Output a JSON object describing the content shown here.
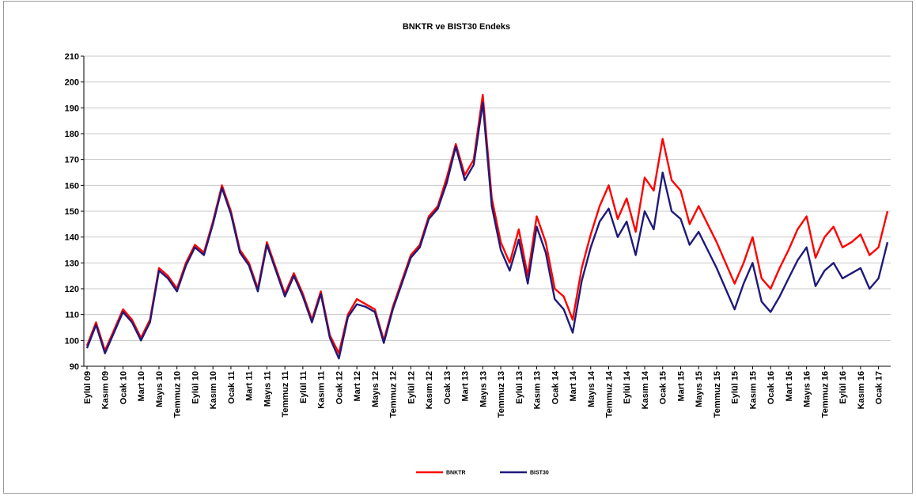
{
  "chart_data": {
    "type": "line",
    "title": "BNKTR  ve BIST30 Endeks",
    "xlabel": "",
    "ylabel": "",
    "ylim": [
      90,
      210
    ],
    "yticks": [
      90,
      100,
      110,
      120,
      130,
      140,
      150,
      160,
      170,
      180,
      190,
      200,
      210
    ],
    "grid": "horizontal",
    "legend_position": "bottom-center",
    "x_tick_labels": [
      "Eylül 09",
      "Kasım 09",
      "Ocak 10",
      "Mart 10",
      "Mayıs 10",
      "Temmuz 10",
      "Eylül 10",
      "Kasım 10",
      "Ocak 11",
      "Mart 11",
      "Mayıs 11",
      "Temmuz 11",
      "Eylül 11",
      "Kasım 11",
      "Ocak 12",
      "Mart 12",
      "Mayıs 12",
      "Temmuz 12",
      "Eylül 12",
      "Kasım 12",
      "Ocak 13",
      "Mart 13",
      "Mayıs 13",
      "Temmuz 13",
      "Eylül 13",
      "Kasım 13",
      "Ocak 14",
      "Mart 14",
      "Mayıs 14",
      "Temmuz 14",
      "Eylül 14",
      "Kasım 14",
      "Ocak 15",
      "Mart 15",
      "Mayıs 15",
      "Temmuz 15",
      "Eylül 15",
      "Kasım 15",
      "Ocak 16",
      "Mart 16",
      "Mayıs 16",
      "Temmuz 16",
      "Eylül 16",
      "Kasım 16",
      "Ocak 17"
    ],
    "x": [
      "2009-09",
      "2009-10",
      "2009-11",
      "2009-12",
      "2010-01",
      "2010-02",
      "2010-03",
      "2010-04",
      "2010-05",
      "2010-06",
      "2010-07",
      "2010-08",
      "2010-09",
      "2010-10",
      "2010-11",
      "2010-12",
      "2011-01",
      "2011-02",
      "2011-03",
      "2011-04",
      "2011-05",
      "2011-06",
      "2011-07",
      "2011-08",
      "2011-09",
      "2011-10",
      "2011-11",
      "2011-12",
      "2012-01",
      "2012-02",
      "2012-03",
      "2012-04",
      "2012-05",
      "2012-06",
      "2012-07",
      "2012-08",
      "2012-09",
      "2012-10",
      "2012-11",
      "2012-12",
      "2013-01",
      "2013-02",
      "2013-03",
      "2013-04",
      "2013-05",
      "2013-06",
      "2013-07",
      "2013-08",
      "2013-09",
      "2013-10",
      "2013-11",
      "2013-12",
      "2014-01",
      "2014-02",
      "2014-03",
      "2014-04",
      "2014-05",
      "2014-06",
      "2014-07",
      "2014-08",
      "2014-09",
      "2014-10",
      "2014-11",
      "2014-12",
      "2015-01",
      "2015-02",
      "2015-03",
      "2015-04",
      "2015-05",
      "2015-06",
      "2015-07",
      "2015-08",
      "2015-09",
      "2015-10",
      "2015-11",
      "2015-12",
      "2016-01",
      "2016-02",
      "2016-03",
      "2016-04",
      "2016-05",
      "2016-06",
      "2016-07",
      "2016-08",
      "2016-09",
      "2016-10",
      "2016-11",
      "2016-12",
      "2017-01",
      "2017-02"
    ],
    "series": [
      {
        "name": "BNKTR",
        "color": "#ff0000",
        "values": [
          98,
          107,
          96,
          104,
          112,
          108,
          101,
          108,
          128,
          125,
          120,
          130,
          137,
          134,
          146,
          160,
          150,
          135,
          130,
          120,
          138,
          128,
          118,
          126,
          118,
          108,
          119,
          102,
          95,
          110,
          116,
          114,
          112,
          100,
          113,
          123,
          133,
          137,
          148,
          152,
          163,
          176,
          164,
          170,
          195,
          155,
          138,
          130,
          143,
          125,
          148,
          138,
          120,
          117,
          108,
          128,
          141,
          152,
          160,
          147,
          155,
          142,
          163,
          158,
          178,
          162,
          158,
          145,
          152,
          145,
          138,
          130,
          122,
          130,
          140,
          124,
          120,
          128,
          135,
          143,
          148,
          132,
          140,
          144,
          136,
          138,
          141,
          133,
          136,
          150
        ]
      },
      {
        "name": "BIST30",
        "color": "#1f1a7a",
        "values": [
          97,
          106,
          95,
          103,
          111,
          107,
          100,
          107,
          127,
          124,
          119,
          129,
          136,
          133,
          145,
          159,
          149,
          134,
          129,
          119,
          137,
          127,
          117,
          125,
          117,
          107,
          118,
          101,
          93,
          109,
          114,
          113,
          111,
          99,
          112,
          122,
          132,
          136,
          147,
          151,
          161,
          175,
          162,
          168,
          192,
          152,
          135,
          127,
          139,
          122,
          144,
          134,
          116,
          112,
          103,
          123,
          136,
          146,
          151,
          140,
          146,
          133,
          150,
          143,
          165,
          150,
          147,
          137,
          142,
          135,
          128,
          120,
          112,
          122,
          130,
          115,
          111,
          117,
          124,
          131,
          136,
          121,
          127,
          130,
          124,
          126,
          128,
          120,
          124,
          138
        ]
      }
    ]
  }
}
